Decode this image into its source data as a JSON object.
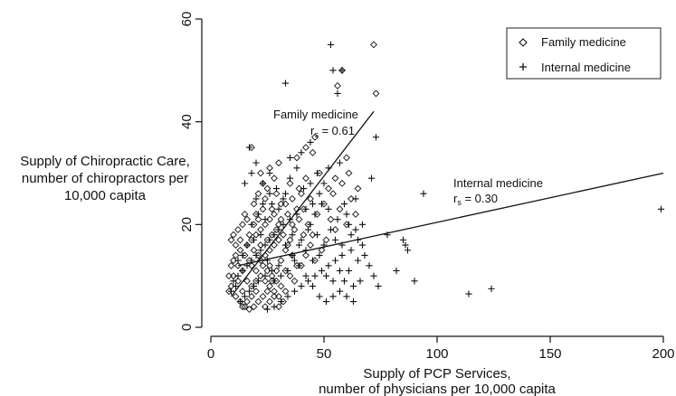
{
  "chart_data": {
    "type": "scatter",
    "xlabel_lines": [
      "Supply of PCP Services,",
      "number of physicians per 10,000 capita"
    ],
    "ylabel_lines": [
      "Supply of Chiropractic Care,",
      "number of chiropractors per",
      "10,000 capita"
    ],
    "xlim": [
      0,
      200
    ],
    "ylim": [
      0,
      60
    ],
    "xticks": [
      0,
      50,
      100,
      150,
      200
    ],
    "yticks": [
      0,
      20,
      40,
      60
    ],
    "legend": {
      "position": "top-right",
      "entries": [
        {
          "label": "Family medicine",
          "marker": "diamond"
        },
        {
          "label": "Internal medicine",
          "marker": "plus"
        }
      ]
    },
    "annotations": [
      {
        "title": "Family medicine",
        "stat_prefix": "r",
        "stat_sub": "s",
        "stat_value": " = 0.61"
      },
      {
        "title": "Internal medicine",
        "stat_prefix": "r",
        "stat_sub": "s",
        "stat_value": " = 0.30"
      }
    ],
    "fit_lines": [
      {
        "series": "Family medicine",
        "x": [
          9,
          72
        ],
        "y": [
          6,
          42
        ]
      },
      {
        "series": "Internal medicine",
        "x": [
          12,
          200
        ],
        "y": [
          12,
          30
        ]
      }
    ],
    "series": [
      {
        "name": "Family medicine",
        "marker": "diamond",
        "points": [
          [
            72,
            55
          ],
          [
            58,
            50
          ],
          [
            56,
            47
          ],
          [
            73,
            45.5
          ],
          [
            18,
            35
          ],
          [
            46,
            37
          ],
          [
            38,
            33
          ],
          [
            30,
            32
          ],
          [
            42,
            35
          ],
          [
            45,
            34
          ],
          [
            48,
            30
          ],
          [
            55,
            29
          ],
          [
            60,
            33
          ],
          [
            52,
            27
          ],
          [
            35,
            28
          ],
          [
            28,
            29
          ],
          [
            22,
            30
          ],
          [
            25,
            27
          ],
          [
            40,
            26
          ],
          [
            44,
            25
          ],
          [
            33,
            24
          ],
          [
            27,
            23
          ],
          [
            24,
            25
          ],
          [
            20,
            22
          ],
          [
            19,
            24
          ],
          [
            16,
            21
          ],
          [
            14,
            20
          ],
          [
            12,
            19
          ],
          [
            10,
            18
          ],
          [
            9,
            17
          ],
          [
            11,
            16
          ],
          [
            13,
            15
          ],
          [
            15,
            14
          ],
          [
            17,
            13
          ],
          [
            18,
            12
          ],
          [
            20,
            11
          ],
          [
            22,
            10
          ],
          [
            24,
            9
          ],
          [
            26,
            8
          ],
          [
            28,
            7
          ],
          [
            30,
            6
          ],
          [
            32,
            5
          ],
          [
            12,
            12
          ],
          [
            10,
            10
          ],
          [
            9,
            8
          ],
          [
            8,
            7
          ],
          [
            11,
            6
          ],
          [
            13,
            5
          ],
          [
            15,
            4
          ],
          [
            17,
            3.5
          ],
          [
            19,
            4
          ],
          [
            21,
            5
          ],
          [
            23,
            6
          ],
          [
            25,
            7
          ],
          [
            27,
            9
          ],
          [
            29,
            11
          ],
          [
            31,
            13
          ],
          [
            33,
            15
          ],
          [
            35,
            17
          ],
          [
            37,
            19
          ],
          [
            39,
            21
          ],
          [
            41,
            23
          ],
          [
            43,
            20
          ],
          [
            45,
            18
          ],
          [
            47,
            22
          ],
          [
            50,
            24
          ],
          [
            53,
            21
          ],
          [
            55,
            19
          ],
          [
            57,
            23
          ],
          [
            60,
            20
          ],
          [
            62,
            25
          ],
          [
            64,
            22
          ],
          [
            16,
            16
          ],
          [
            18,
            17
          ],
          [
            20,
            18
          ],
          [
            22,
            19
          ],
          [
            24,
            20
          ],
          [
            26,
            21
          ],
          [
            28,
            22
          ],
          [
            30,
            20
          ],
          [
            32,
            18
          ],
          [
            34,
            16
          ],
          [
            36,
            14
          ],
          [
            38,
            12
          ],
          [
            14,
            11
          ],
          [
            16,
            9
          ],
          [
            18,
            8
          ],
          [
            20,
            7
          ],
          [
            22,
            13
          ],
          [
            24,
            14
          ],
          [
            26,
            15
          ],
          [
            28,
            16
          ],
          [
            30,
            17
          ],
          [
            12,
            9
          ],
          [
            10,
            13
          ],
          [
            14,
            7
          ],
          [
            21,
            26
          ],
          [
            23,
            28
          ],
          [
            26,
            31
          ],
          [
            29,
            26
          ],
          [
            31,
            24
          ],
          [
            34,
            22
          ],
          [
            36,
            25
          ],
          [
            39,
            27
          ],
          [
            42,
            29
          ],
          [
            17,
            18
          ],
          [
            19,
            15
          ],
          [
            21,
            14
          ],
          [
            23,
            12
          ],
          [
            25,
            11
          ],
          [
            27,
            10
          ],
          [
            29,
            9
          ],
          [
            31,
            8
          ],
          [
            33,
            7
          ],
          [
            35,
            10
          ],
          [
            37,
            9
          ],
          [
            40,
            12
          ],
          [
            42,
            14
          ],
          [
            44,
            16
          ],
          [
            46,
            13
          ],
          [
            15,
            22
          ],
          [
            13,
            17
          ],
          [
            11,
            14
          ],
          [
            9,
            12
          ],
          [
            8,
            10
          ],
          [
            19,
            20
          ],
          [
            21,
            21
          ],
          [
            23,
            23
          ],
          [
            25,
            17
          ],
          [
            27,
            18
          ],
          [
            29,
            19
          ],
          [
            31,
            21
          ],
          [
            33,
            11
          ],
          [
            36,
            20
          ],
          [
            38,
            23
          ],
          [
            41,
            18
          ],
          [
            49,
            15
          ],
          [
            51,
            17
          ],
          [
            54,
            26
          ],
          [
            58,
            28
          ],
          [
            61,
            30
          ],
          [
            65,
            27
          ],
          [
            20,
            9
          ],
          [
            18,
            6
          ],
          [
            16,
            5
          ],
          [
            14,
            4
          ],
          [
            24,
            4
          ],
          [
            26,
            5
          ],
          [
            28,
            6
          ],
          [
            30,
            4
          ],
          [
            22,
            16
          ],
          [
            26,
            12
          ]
        ]
      },
      {
        "name": "Internal medicine",
        "marker": "plus",
        "points": [
          [
            53,
            55
          ],
          [
            54,
            50
          ],
          [
            58,
            50
          ],
          [
            56,
            45.5
          ],
          [
            33,
            47.5
          ],
          [
            17,
            35
          ],
          [
            44,
            36
          ],
          [
            57,
            32
          ],
          [
            73,
            37
          ],
          [
            71,
            29
          ],
          [
            94,
            26
          ],
          [
            199,
            23
          ],
          [
            50,
            28
          ],
          [
            48,
            26
          ],
          [
            45,
            24
          ],
          [
            42,
            23
          ],
          [
            38,
            22
          ],
          [
            35,
            21
          ],
          [
            32,
            20
          ],
          [
            30,
            19
          ],
          [
            28,
            18
          ],
          [
            26,
            17
          ],
          [
            24,
            16
          ],
          [
            22,
            15
          ],
          [
            20,
            14
          ],
          [
            18,
            13
          ],
          [
            16,
            12
          ],
          [
            14,
            11
          ],
          [
            12,
            10
          ],
          [
            10,
            9
          ],
          [
            60,
            22
          ],
          [
            64,
            25
          ],
          [
            67,
            20
          ],
          [
            65,
            17
          ],
          [
            62,
            15
          ],
          [
            58,
            14
          ],
          [
            55,
            13
          ],
          [
            52,
            12
          ],
          [
            49,
            11
          ],
          [
            46,
            10
          ],
          [
            43,
            9
          ],
          [
            40,
            8
          ],
          [
            37,
            7
          ],
          [
            34,
            6
          ],
          [
            31,
            5
          ],
          [
            28,
            4
          ],
          [
            25,
            3.5
          ],
          [
            78,
            18
          ],
          [
            85,
            17
          ],
          [
            86,
            16
          ],
          [
            87,
            15
          ],
          [
            82,
            11
          ],
          [
            90,
            9
          ],
          [
            114,
            6.5
          ],
          [
            124,
            7.5
          ],
          [
            68,
            14
          ],
          [
            70,
            12
          ],
          [
            72,
            10
          ],
          [
            74,
            8
          ],
          [
            66,
            9
          ],
          [
            63,
            8
          ],
          [
            61,
            11
          ],
          [
            59,
            9
          ],
          [
            57,
            7
          ],
          [
            54,
            6
          ],
          [
            51,
            5
          ],
          [
            48,
            6
          ],
          [
            45,
            8
          ],
          [
            42,
            10
          ],
          [
            39,
            12
          ],
          [
            36,
            14
          ],
          [
            33,
            16
          ],
          [
            30,
            12
          ],
          [
            27,
            11
          ],
          [
            24,
            10
          ],
          [
            21,
            9
          ],
          [
            19,
            8
          ],
          [
            17,
            7
          ],
          [
            15,
            6
          ],
          [
            13,
            5
          ],
          [
            20,
            25
          ],
          [
            23,
            28
          ],
          [
            26,
            30
          ],
          [
            29,
            27
          ],
          [
            32,
            25
          ],
          [
            35,
            29
          ],
          [
            38,
            31
          ],
          [
            41,
            27
          ],
          [
            44,
            20
          ],
          [
            47,
            18
          ],
          [
            50,
            16
          ],
          [
            53,
            19
          ],
          [
            56,
            21
          ],
          [
            59,
            24
          ],
          [
            62,
            18
          ],
          [
            65,
            13
          ],
          [
            18,
            20
          ],
          [
            21,
            22
          ],
          [
            24,
            21
          ],
          [
            27,
            24
          ],
          [
            30,
            23
          ],
          [
            33,
            26
          ],
          [
            36,
            18
          ],
          [
            39,
            16
          ],
          [
            42,
            15
          ],
          [
            45,
            13
          ],
          [
            48,
            14
          ],
          [
            51,
            10
          ],
          [
            54,
            9
          ],
          [
            57,
            11
          ],
          [
            60,
            6
          ],
          [
            63,
            5
          ],
          [
            22,
            18
          ],
          [
            25,
            13
          ],
          [
            28,
            9
          ],
          [
            31,
            10
          ],
          [
            34,
            11
          ],
          [
            37,
            13
          ],
          [
            40,
            17
          ],
          [
            43,
            19
          ],
          [
            46,
            22
          ],
          [
            49,
            24
          ],
          [
            52,
            23
          ],
          [
            55,
            17
          ],
          [
            58,
            16
          ],
          [
            61,
            20
          ],
          [
            64,
            19
          ],
          [
            67,
            16
          ],
          [
            16,
            16
          ],
          [
            19,
            17
          ],
          [
            14,
            14
          ],
          [
            12,
            13
          ],
          [
            11,
            8
          ],
          [
            9,
            7
          ],
          [
            35,
            33
          ],
          [
            40,
            34
          ],
          [
            47,
            30
          ],
          [
            52,
            31
          ],
          [
            26,
            26
          ],
          [
            23,
            24
          ],
          [
            15,
            28
          ],
          [
            18,
            30
          ],
          [
            20,
            32
          ],
          [
            44,
            28
          ]
        ]
      }
    ]
  }
}
